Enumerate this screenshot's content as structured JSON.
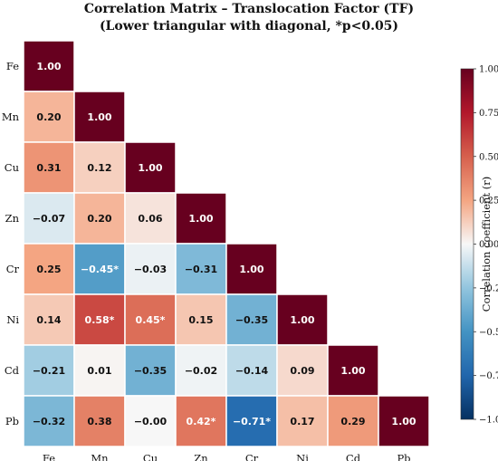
{
  "chart_data": {
    "type": "heatmap",
    "title_line1": "Correlation Matrix – Translocation Factor (TF)",
    "title_line2": "(Lower triangular with diagonal, *p<0.05)",
    "variables": [
      "Fe",
      "Mn",
      "Cu",
      "Zn",
      "Cr",
      "Ni",
      "Cd",
      "Pb"
    ],
    "matrix": [
      [
        1.0,
        null,
        null,
        null,
        null,
        null,
        null,
        null
      ],
      [
        0.2,
        1.0,
        null,
        null,
        null,
        null,
        null,
        null
      ],
      [
        0.31,
        0.12,
        1.0,
        null,
        null,
        null,
        null,
        null
      ],
      [
        -0.07,
        0.2,
        0.06,
        1.0,
        null,
        null,
        null,
        null
      ],
      [
        0.25,
        -0.45,
        -0.03,
        -0.31,
        1.0,
        null,
        null,
        null
      ],
      [
        0.14,
        0.58,
        0.45,
        0.15,
        -0.35,
        1.0,
        null,
        null
      ],
      [
        -0.21,
        0.01,
        -0.35,
        -0.02,
        -0.14,
        0.09,
        1.0,
        null
      ],
      [
        -0.32,
        0.38,
        -0.0,
        0.42,
        -0.71,
        0.17,
        0.29,
        1.0
      ]
    ],
    "cell_labels": [
      [
        "1.00",
        "",
        "",
        "",
        "",
        "",
        "",
        ""
      ],
      [
        "0.20",
        "1.00",
        "",
        "",
        "",
        "",
        "",
        ""
      ],
      [
        "0.31",
        "0.12",
        "1.00",
        "",
        "",
        "",
        "",
        ""
      ],
      [
        "−0.07",
        "0.20",
        "0.06",
        "1.00",
        "",
        "",
        "",
        ""
      ],
      [
        "0.25",
        "−0.45*",
        "−0.03",
        "−0.31",
        "1.00",
        "",
        "",
        ""
      ],
      [
        "0.14",
        "0.58*",
        "0.45*",
        "0.15",
        "−0.35",
        "1.00",
        "",
        ""
      ],
      [
        "−0.21",
        "0.01",
        "−0.35",
        "−0.02",
        "−0.14",
        "0.09",
        "1.00",
        ""
      ],
      [
        "−0.32",
        "0.38",
        "−0.00",
        "0.42*",
        "−0.71*",
        "0.17",
        "0.29",
        "1.00"
      ]
    ],
    "colorbar": {
      "label": "Correlation coefficient (r)",
      "range": [
        -1.0,
        1.0
      ],
      "ticks": [
        "1.00",
        "0.75",
        "0.50",
        "0.25",
        "0.00",
        "−0.25",
        "−0.50",
        "−0.75",
        "−1.00"
      ],
      "colormap": "RdBu_r"
    },
    "grid": false,
    "colors": {
      "cell_border": "#ffffff",
      "dark_text": "#111111",
      "light_text": "#ffffff"
    }
  }
}
